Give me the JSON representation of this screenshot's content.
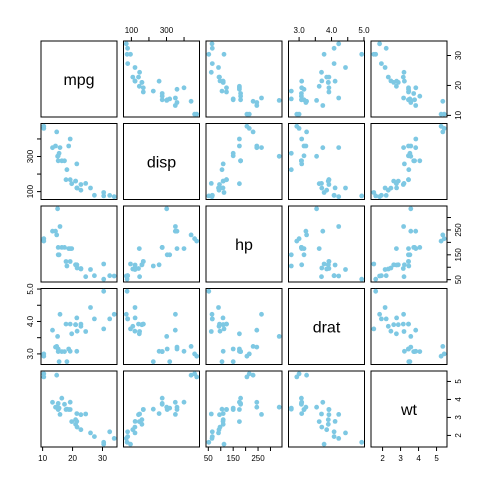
{
  "chart_data": {
    "type": "scatter-matrix",
    "variables": [
      "mpg",
      "disp",
      "hp",
      "drat",
      "wt"
    ],
    "point_color": "#7ec8e3",
    "ranges": {
      "mpg": [
        10.4,
        33.9
      ],
      "disp": [
        71.1,
        472
      ],
      "hp": [
        52,
        335
      ],
      "drat": [
        2.76,
        4.93
      ],
      "wt": [
        1.513,
        5.424
      ]
    },
    "ticks": {
      "mpg": {
        "values": [
          10,
          20,
          30
        ],
        "labels": [
          "10",
          "20",
          "30"
        ]
      },
      "disp": {
        "values": [
          100,
          200,
          300,
          400
        ],
        "labels": [
          "100",
          "",
          "300",
          ""
        ]
      },
      "hp": {
        "values": [
          50,
          100,
          150,
          200,
          250,
          300
        ],
        "labels": [
          "50",
          "",
          "150",
          "",
          "250",
          ""
        ]
      },
      "drat": {
        "values": [
          3.0,
          3.5,
          4.0,
          4.5,
          5.0
        ],
        "labels": [
          "3.0",
          "",
          "4.0",
          "",
          "5.0"
        ]
      },
      "wt": {
        "values": [
          2,
          3,
          4,
          5
        ],
        "labels": [
          "2",
          "3",
          "4",
          "5"
        ]
      }
    },
    "axis_layout": {
      "top": [
        1,
        3
      ],
      "bottom": [
        0,
        2,
        4
      ],
      "left": [
        1,
        3
      ],
      "right": [
        0,
        2,
        4
      ]
    },
    "observations": [
      {
        "mpg": 21.0,
        "disp": 160.0,
        "hp": 110,
        "drat": 3.9,
        "wt": 2.62
      },
      {
        "mpg": 21.0,
        "disp": 160.0,
        "hp": 110,
        "drat": 3.9,
        "wt": 2.875
      },
      {
        "mpg": 22.8,
        "disp": 108.0,
        "hp": 93,
        "drat": 3.85,
        "wt": 2.32
      },
      {
        "mpg": 21.4,
        "disp": 258.0,
        "hp": 110,
        "drat": 3.08,
        "wt": 3.215
      },
      {
        "mpg": 18.7,
        "disp": 360.0,
        "hp": 175,
        "drat": 3.15,
        "wt": 3.44
      },
      {
        "mpg": 18.1,
        "disp": 225.0,
        "hp": 105,
        "drat": 2.76,
        "wt": 3.46
      },
      {
        "mpg": 14.3,
        "disp": 360.0,
        "hp": 245,
        "drat": 3.21,
        "wt": 3.57
      },
      {
        "mpg": 24.4,
        "disp": 146.7,
        "hp": 62,
        "drat": 3.69,
        "wt": 3.19
      },
      {
        "mpg": 22.8,
        "disp": 140.8,
        "hp": 95,
        "drat": 3.92,
        "wt": 3.15
      },
      {
        "mpg": 19.2,
        "disp": 167.6,
        "hp": 123,
        "drat": 3.92,
        "wt": 3.44
      },
      {
        "mpg": 17.8,
        "disp": 167.6,
        "hp": 123,
        "drat": 3.92,
        "wt": 3.44
      },
      {
        "mpg": 16.4,
        "disp": 275.8,
        "hp": 180,
        "drat": 3.07,
        "wt": 4.07
      },
      {
        "mpg": 17.3,
        "disp": 275.8,
        "hp": 180,
        "drat": 3.07,
        "wt": 3.73
      },
      {
        "mpg": 15.2,
        "disp": 275.8,
        "hp": 180,
        "drat": 3.07,
        "wt": 3.78
      },
      {
        "mpg": 10.4,
        "disp": 472.0,
        "hp": 205,
        "drat": 2.93,
        "wt": 5.25
      },
      {
        "mpg": 10.4,
        "disp": 460.0,
        "hp": 215,
        "drat": 3.0,
        "wt": 5.424
      },
      {
        "mpg": 14.7,
        "disp": 440.0,
        "hp": 230,
        "drat": 3.23,
        "wt": 5.345
      },
      {
        "mpg": 32.4,
        "disp": 78.7,
        "hp": 66,
        "drat": 4.08,
        "wt": 2.2
      },
      {
        "mpg": 30.4,
        "disp": 75.7,
        "hp": 52,
        "drat": 4.93,
        "wt": 1.615
      },
      {
        "mpg": 33.9,
        "disp": 71.1,
        "hp": 65,
        "drat": 4.22,
        "wt": 1.835
      },
      {
        "mpg": 21.5,
        "disp": 120.1,
        "hp": 97,
        "drat": 3.7,
        "wt": 2.465
      },
      {
        "mpg": 15.5,
        "disp": 318.0,
        "hp": 150,
        "drat": 2.76,
        "wt": 3.52
      },
      {
        "mpg": 15.2,
        "disp": 304.0,
        "hp": 150,
        "drat": 3.15,
        "wt": 3.435
      },
      {
        "mpg": 13.3,
        "disp": 350.0,
        "hp": 245,
        "drat": 3.73,
        "wt": 3.84
      },
      {
        "mpg": 19.2,
        "disp": 400.0,
        "hp": 175,
        "drat": 3.08,
        "wt": 3.845
      },
      {
        "mpg": 27.3,
        "disp": 79.0,
        "hp": 66,
        "drat": 4.08,
        "wt": 1.935
      },
      {
        "mpg": 26.0,
        "disp": 120.3,
        "hp": 91,
        "drat": 4.43,
        "wt": 2.14
      },
      {
        "mpg": 30.4,
        "disp": 95.1,
        "hp": 113,
        "drat": 3.77,
        "wt": 1.513
      },
      {
        "mpg": 15.8,
        "disp": 351.0,
        "hp": 264,
        "drat": 4.22,
        "wt": 3.17
      },
      {
        "mpg": 19.7,
        "disp": 145.0,
        "hp": 175,
        "drat": 3.62,
        "wt": 2.77
      },
      {
        "mpg": 15.0,
        "disp": 301.0,
        "hp": 335,
        "drat": 3.54,
        "wt": 3.57
      },
      {
        "mpg": 21.4,
        "disp": 121.0,
        "hp": 109,
        "drat": 4.11,
        "wt": 2.78
      }
    ]
  }
}
